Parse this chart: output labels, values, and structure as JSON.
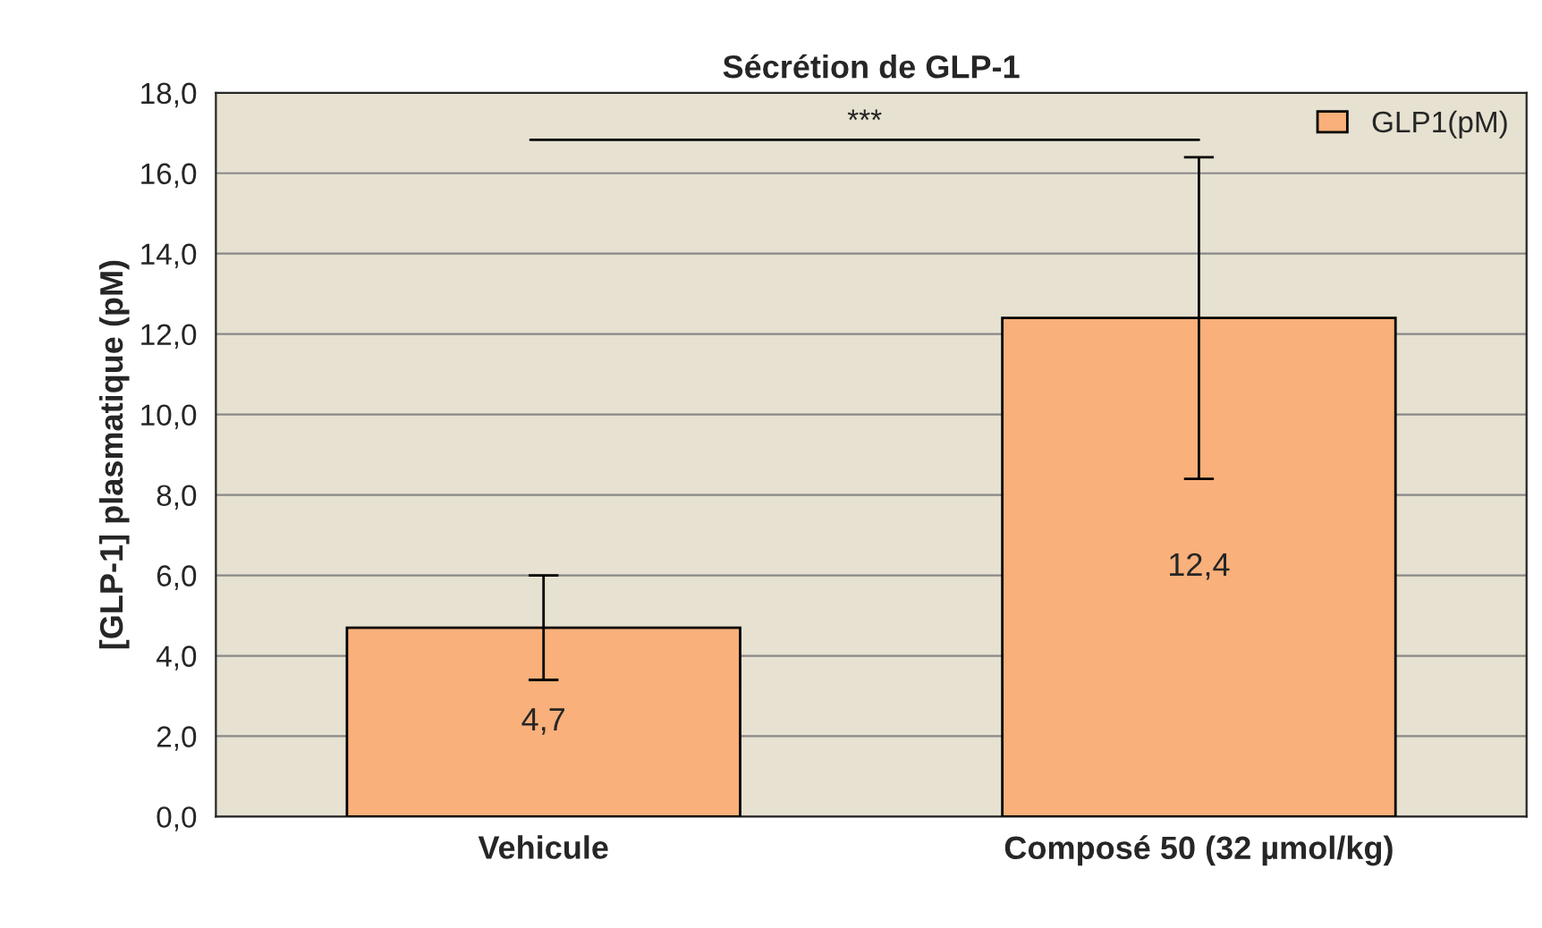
{
  "chart_data": {
    "type": "bar",
    "title": "Sécrétion de GLP-1",
    "ylabel": "[GLP-1] plasmatique (pM)",
    "categories": [
      "Vehicule",
      "Composé 50 (32 µmol/kg)"
    ],
    "series": [
      {
        "name": "GLP1(pM)",
        "color": "#f9b07a",
        "values": [
          4.7,
          12.4
        ],
        "errors": [
          1.3,
          4.0
        ],
        "value_labels": [
          "4,7",
          "12,4"
        ]
      }
    ],
    "ylim": [
      0,
      18
    ],
    "yticks": [
      {
        "value": 0,
        "label": "0,0"
      },
      {
        "value": 2,
        "label": "2,0"
      },
      {
        "value": 4,
        "label": "4,0"
      },
      {
        "value": 6,
        "label": "6,0"
      },
      {
        "value": 8,
        "label": "8,0"
      },
      {
        "value": 10,
        "label": "10,0"
      },
      {
        "value": 12,
        "label": "12,0"
      },
      {
        "value": 14,
        "label": "14,0"
      },
      {
        "value": 16,
        "label": "16,0"
      },
      {
        "value": 18,
        "label": "18,0"
      }
    ],
    "grid": "y",
    "legend": "top right",
    "annotations": [
      "***"
    ]
  }
}
